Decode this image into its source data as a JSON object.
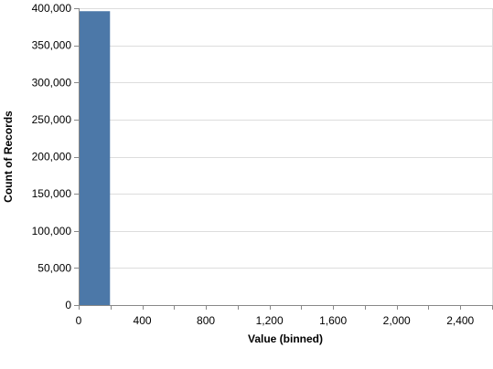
{
  "chart_data": {
    "type": "bar",
    "xlabel": "Value (binned)",
    "ylabel": "Count of Records",
    "xlim": [
      0,
      2600
    ],
    "ylim": [
      0,
      400000
    ],
    "x_ticks": [
      0,
      200,
      400,
      600,
      800,
      1000,
      1200,
      1400,
      1600,
      1800,
      2000,
      2200,
      2400,
      2600
    ],
    "x_tick_labels": [
      {
        "value": 0,
        "label": "0"
      },
      {
        "value": 400,
        "label": "400"
      },
      {
        "value": 800,
        "label": "800"
      },
      {
        "value": 1200,
        "label": "1,200"
      },
      {
        "value": 1600,
        "label": "1,600"
      },
      {
        "value": 2000,
        "label": "2,000"
      },
      {
        "value": 2400,
        "label": "2,400"
      }
    ],
    "y_ticks": [
      {
        "value": 0,
        "label": "0"
      },
      {
        "value": 50000,
        "label": "50,000"
      },
      {
        "value": 100000,
        "label": "100,000"
      },
      {
        "value": 150000,
        "label": "150,000"
      },
      {
        "value": 200000,
        "label": "200,000"
      },
      {
        "value": 250000,
        "label": "250,000"
      },
      {
        "value": 300000,
        "label": "300,000"
      },
      {
        "value": 350000,
        "label": "350,000"
      },
      {
        "value": 400000,
        "label": "400,000"
      }
    ],
    "bins": [
      {
        "start": 0,
        "end": 200,
        "count": 396000
      }
    ],
    "grid": true,
    "bar_color": "#4c78a8"
  }
}
